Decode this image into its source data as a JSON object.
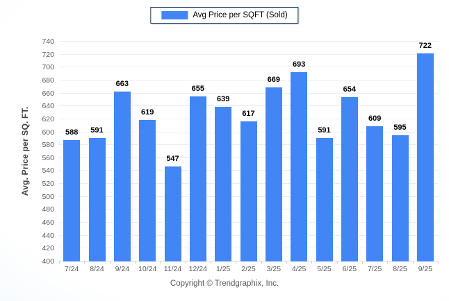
{
  "legend": {
    "label": "Avg Price per SQFT (Sold)",
    "swatch_color": "#4285f4",
    "border_color": "#17375e"
  },
  "chart_data": {
    "type": "bar",
    "title": "",
    "categories": [
      "7/24",
      "8/24",
      "9/24",
      "10/24",
      "11/24",
      "12/24",
      "1/25",
      "2/25",
      "3/25",
      "4/25",
      "5/25",
      "6/25",
      "7/25",
      "8/25",
      "9/25"
    ],
    "values": [
      588,
      591,
      663,
      619,
      547,
      655,
      639,
      617,
      669,
      693,
      591,
      654,
      609,
      595,
      722
    ],
    "series_name": "Avg Price per SQFT (Sold)",
    "xlabel": "",
    "ylabel": "Avg. Price per SQ. FT.",
    "ylim": [
      400,
      740
    ],
    "ytick_step": 20,
    "grid": true,
    "legend_position": "top-center",
    "bar_color": "#4285f4",
    "value_labels": true
  },
  "footer": {
    "copyright": "Copyright © Trendgraphix, Inc."
  },
  "colors": {
    "bar": "#4285f4",
    "gridline": "#ececec",
    "axis_text": "#595959",
    "background_edge": "#dce9f6",
    "background_center": "#ffffff"
  }
}
